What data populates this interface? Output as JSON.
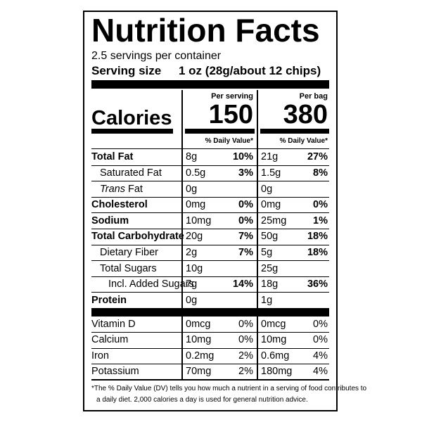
{
  "header": {
    "title": "Nutrition Facts",
    "servings": "2.5 servings per container",
    "serving_size_label": "Serving size",
    "serving_size_value": "1 oz (28g/about 12 chips)"
  },
  "columns": {
    "per_serving": "Per serving",
    "per_bag": "Per bag"
  },
  "calories": {
    "label": "Calories",
    "per_serving": "150",
    "per_bag": "380"
  },
  "dv_header": "% Daily Value*",
  "nutrients": [
    {
      "name": "Total Fat",
      "bold": true,
      "indent": 0,
      "serving_amount": "8g",
      "serving_dv": "10%",
      "bag_amount": "21g",
      "bag_dv": "27%"
    },
    {
      "name": "Saturated Fat",
      "bold": false,
      "indent": 1,
      "serving_amount": "0.5g",
      "serving_dv": "3%",
      "bag_amount": "1.5g",
      "bag_dv": "8%"
    },
    {
      "name_parts": [
        {
          "text": "Trans",
          "italic": true
        },
        {
          "text": "Fat",
          "italic": false
        }
      ],
      "bold": false,
      "indent": 1,
      "serving_amount": "0g",
      "bag_amount": "0g"
    },
    {
      "name": "Cholesterol",
      "bold": true,
      "indent": 0,
      "serving_amount": "0mg",
      "serving_dv": "0%",
      "bag_amount": "0mg",
      "bag_dv": "0%"
    },
    {
      "name": "Sodium",
      "bold": true,
      "indent": 0,
      "serving_amount": "10mg",
      "serving_dv": "0%",
      "bag_amount": "25mg",
      "bag_dv": "1%"
    },
    {
      "name": "Total Carbohydrate",
      "bold": true,
      "indent": 0,
      "serving_amount": "20g",
      "serving_dv": "7%",
      "bag_amount": "50g",
      "bag_dv": "18%"
    },
    {
      "name": "Dietary Fiber",
      "bold": false,
      "indent": 1,
      "serving_amount": "2g",
      "serving_dv": "7%",
      "bag_amount": "5g",
      "bag_dv": "18%"
    },
    {
      "name": "Total Sugars",
      "bold": false,
      "indent": 1,
      "serving_amount": "10g",
      "bag_amount": "25g"
    },
    {
      "name": "Incl. Added Sugars",
      "bold": false,
      "indent": 2,
      "serving_amount": "7g",
      "serving_dv": "14%",
      "bag_amount": "18g",
      "bag_dv": "36%"
    },
    {
      "name": "Protein",
      "bold": true,
      "indent": 0,
      "serving_amount": "0g",
      "bag_amount": "1g"
    }
  ],
  "vitamins": [
    {
      "name": "Vitamin D",
      "serving_amount": "0mcg",
      "serving_dv": "0%",
      "bag_amount": "0mcg",
      "bag_dv": "0%"
    },
    {
      "name": "Calcium",
      "serving_amount": "10mg",
      "serving_dv": "0%",
      "bag_amount": "10mg",
      "bag_dv": "0%"
    },
    {
      "name": "Iron",
      "serving_amount": "0.2mg",
      "serving_dv": "2%",
      "bag_amount": "0.6mg",
      "bag_dv": "4%"
    },
    {
      "name": "Potassium",
      "serving_amount": "70mg",
      "serving_dv": "2%",
      "bag_amount": "180mg",
      "bag_dv": "4%"
    }
  ],
  "footnote": [
    "*The % Daily Value (DV) tells you how much a nutrient in a serving of food contributes to",
    "a daily diet. 2,000 calories a day is used for general nutrition advice."
  ]
}
